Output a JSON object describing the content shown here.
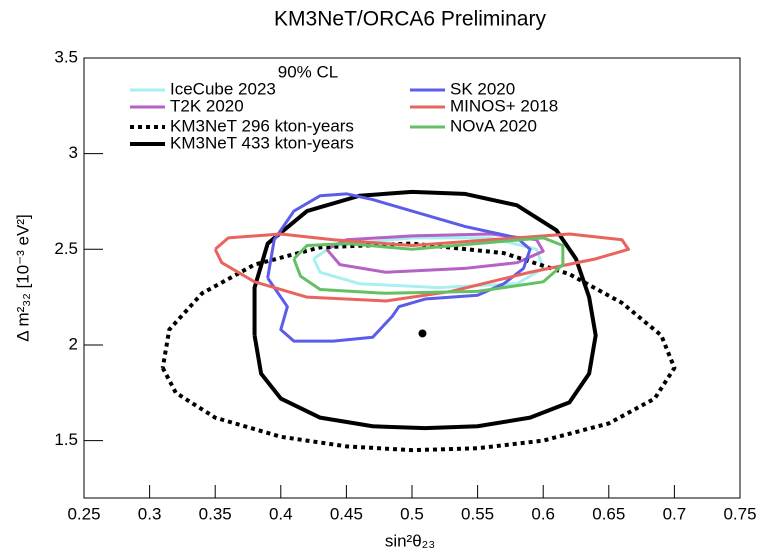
{
  "chart_data": {
    "type": "contour",
    "title": "KM3NeT/ORCA6 Preliminary",
    "x_label": "sin²θ₂₃",
    "y_label": "Δ m²₃₂ [10⁻³ eV²]",
    "legend_title": "90% CL",
    "xlim": [
      0.25,
      0.75
    ],
    "ylim": [
      1.2,
      3.5
    ],
    "xticks": [
      0.25,
      0.3,
      0.35,
      0.4,
      0.45,
      0.5,
      0.55,
      0.6,
      0.65,
      0.7,
      0.75
    ],
    "yticks": [
      1.5,
      2,
      2.5,
      3,
      3.5
    ],
    "series": [
      {
        "name": "IceCube 2023",
        "color": "#a8f0f0",
        "line_style": "solid",
        "line_width": 3,
        "x": [
          0.425,
          0.44,
          0.5,
          0.56,
          0.595,
          0.6,
          0.58,
          0.52,
          0.46,
          0.43,
          0.425
        ],
        "y": [
          2.45,
          2.52,
          2.56,
          2.56,
          2.5,
          2.4,
          2.32,
          2.3,
          2.32,
          2.38,
          2.45
        ]
      },
      {
        "name": "T2K 2020",
        "color": "#b462c4",
        "line_style": "solid",
        "line_width": 3,
        "x": [
          0.435,
          0.45,
          0.5,
          0.56,
          0.595,
          0.6,
          0.58,
          0.54,
          0.48,
          0.445,
          0.435
        ],
        "y": [
          2.5,
          2.55,
          2.57,
          2.58,
          2.55,
          2.49,
          2.43,
          2.4,
          2.38,
          2.42,
          2.5
        ]
      },
      {
        "name": "KM3NeT 296 kton-years",
        "color": "#000000",
        "line_style": "dotted",
        "line_width": 4,
        "x": [
          0.31,
          0.32,
          0.35,
          0.4,
          0.45,
          0.5,
          0.55,
          0.6,
          0.65,
          0.685,
          0.7,
          0.69,
          0.66,
          0.62,
          0.57,
          0.5,
          0.43,
          0.38,
          0.34,
          0.315,
          0.31
        ],
        "y": [
          1.88,
          1.75,
          1.62,
          1.52,
          1.47,
          1.45,
          1.46,
          1.5,
          1.59,
          1.72,
          1.88,
          2.05,
          2.22,
          2.37,
          2.48,
          2.53,
          2.51,
          2.42,
          2.27,
          2.08,
          1.88
        ]
      },
      {
        "name": "KM3NeT 433 kton-years",
        "color": "#000000",
        "line_style": "solid",
        "line_width": 4,
        "x": [
          0.38,
          0.385,
          0.4,
          0.43,
          0.47,
          0.51,
          0.55,
          0.59,
          0.62,
          0.635,
          0.64,
          0.635,
          0.625,
          0.61,
          0.58,
          0.54,
          0.5,
          0.46,
          0.42,
          0.39,
          0.38,
          0.38
        ],
        "y": [
          2.05,
          1.85,
          1.72,
          1.62,
          1.575,
          1.565,
          1.575,
          1.62,
          1.7,
          1.85,
          2.05,
          2.25,
          2.45,
          2.6,
          2.73,
          2.79,
          2.8,
          2.78,
          2.7,
          2.53,
          2.3,
          2.05
        ]
      },
      {
        "name": "SK 2020",
        "color": "#5c5ce8",
        "line_style": "solid",
        "line_width": 3,
        "x": [
          0.39,
          0.395,
          0.41,
          0.43,
          0.45,
          0.47,
          0.5,
          0.54,
          0.58,
          0.59,
          0.585,
          0.57,
          0.55,
          0.51,
          0.49,
          0.485,
          0.47,
          0.44,
          0.41,
          0.4,
          0.405,
          0.39
        ],
        "y": [
          2.35,
          2.55,
          2.7,
          2.78,
          2.79,
          2.76,
          2.7,
          2.62,
          2.56,
          2.5,
          2.4,
          2.32,
          2.26,
          2.24,
          2.2,
          2.15,
          2.04,
          2.02,
          2.02,
          2.08,
          2.2,
          2.35
        ]
      },
      {
        "name": "MINOS+ 2018",
        "color": "#e8645c",
        "line_style": "solid",
        "line_width": 3,
        "x": [
          0.35,
          0.36,
          0.4,
          0.44,
          0.5,
          0.56,
          0.62,
          0.66,
          0.665,
          0.64,
          0.59,
          0.53,
          0.48,
          0.42,
          0.38,
          0.355,
          0.35
        ],
        "y": [
          2.5,
          2.56,
          2.58,
          2.55,
          2.52,
          2.55,
          2.58,
          2.55,
          2.5,
          2.45,
          2.38,
          2.28,
          2.23,
          2.25,
          2.33,
          2.43,
          2.5
        ]
      },
      {
        "name": "NOvA 2020",
        "color": "#64c064",
        "line_style": "solid",
        "line_width": 3,
        "x": [
          0.41,
          0.42,
          0.45,
          0.5,
          0.55,
          0.6,
          0.615,
          0.615,
          0.6,
          0.55,
          0.48,
          0.43,
          0.415,
          0.41
        ],
        "y": [
          2.45,
          2.52,
          2.53,
          2.5,
          2.53,
          2.56,
          2.52,
          2.42,
          2.33,
          2.28,
          2.27,
          2.29,
          2.36,
          2.45
        ]
      }
    ],
    "best_fit": {
      "x": 0.508,
      "y": 2.06,
      "color": "#000000"
    }
  }
}
